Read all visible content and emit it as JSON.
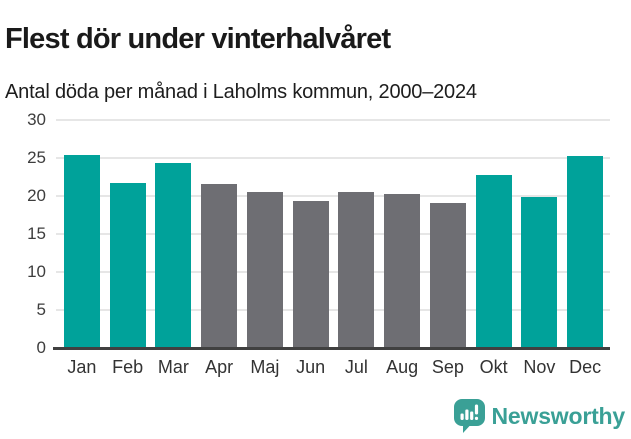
{
  "title": "Flest dör under vinterhalvåret",
  "subtitle": "Antal döda per månad i Laholms kommun, 2000–2024",
  "footer": {
    "brand": "Newsworthy",
    "logo_icon": "bar-chart-speech-bubble-icon"
  },
  "colors": {
    "highlight": "#00a29a",
    "muted": "#6e6e73",
    "logo": "#3aa096",
    "axis_line": "#404040",
    "gridline": "#e6e6e6",
    "title_text": "#1a1a1a",
    "axis_text": "#3d3d3d"
  },
  "chart_data": {
    "type": "bar",
    "title": "Flest dör under vinterhalvåret",
    "subtitle": "Antal döda per månad i Laholms kommun, 2000–2024",
    "categories": [
      "Jan",
      "Feb",
      "Mar",
      "Apr",
      "Maj",
      "Jun",
      "Jul",
      "Aug",
      "Sep",
      "Okt",
      "Nov",
      "Dec"
    ],
    "values": [
      25.4,
      21.7,
      24.3,
      21.6,
      20.5,
      19.3,
      20.5,
      20.2,
      19.1,
      22.7,
      19.9,
      25.2
    ],
    "bar_colors": [
      "highlight",
      "highlight",
      "highlight",
      "muted",
      "muted",
      "muted",
      "muted",
      "muted",
      "muted",
      "highlight",
      "highlight",
      "highlight"
    ],
    "highlighted_categories": [
      "Jan",
      "Feb",
      "Mar",
      "Okt",
      "Nov",
      "Dec"
    ],
    "xlabel": "",
    "ylabel": "",
    "ylim": [
      0,
      30
    ],
    "yticks": [
      0,
      5,
      10,
      15,
      20,
      25,
      30
    ],
    "grid": "horizontal",
    "legend": "none"
  }
}
